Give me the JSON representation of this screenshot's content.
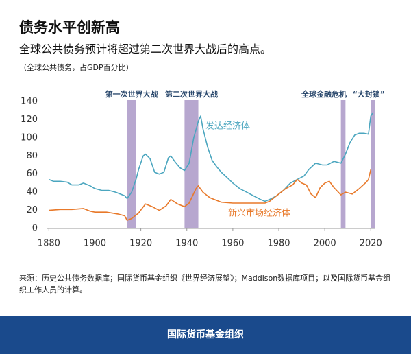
{
  "chart_data": {
    "type": "line",
    "title": "债务水平创新高",
    "subtitle": "全球公共债务预计将超过第二次世界大战后的高点。",
    "ylabel": "（全球公共债务，占GDP百分比）",
    "xlim": [
      1879,
      2022
    ],
    "xticks": [
      1880,
      1900,
      1920,
      1940,
      1960,
      1980,
      2000,
      2020
    ],
    "ylim": [
      0,
      140
    ],
    "yticks": [
      0,
      20,
      40,
      60,
      80,
      100,
      120,
      140
    ],
    "grid": false,
    "shade_color": "#b7a7cf",
    "shaded_periods": [
      {
        "label": "第一次世界大战",
        "start": 1914,
        "end": 1918
      },
      {
        "label": "第二次世界大战",
        "start": 1939,
        "end": 1945
      },
      {
        "label": "全球金融危机",
        "start": 2007,
        "end": 2009
      },
      {
        "label": "“大封锁”",
        "start": 2020,
        "end": 2021.8
      }
    ],
    "series": [
      {
        "name": "发达经济体",
        "color": "#4ba6bf",
        "x": [
          1880,
          1882,
          1885,
          1888,
          1890,
          1893,
          1895,
          1898,
          1900,
          1903,
          1906,
          1909,
          1911,
          1913,
          1914,
          1916,
          1918,
          1919,
          1921,
          1922,
          1924,
          1926,
          1928,
          1930,
          1932,
          1933,
          1935,
          1937,
          1939,
          1941,
          1943,
          1945,
          1946,
          1947,
          1949,
          1951,
          1953,
          1955,
          1958,
          1960,
          1963,
          1966,
          1969,
          1972,
          1974,
          1976,
          1979,
          1982,
          1985,
          1988,
          1991,
          1993,
          1996,
          1999,
          2001,
          2004,
          2007,
          2009,
          2011,
          2013,
          2015,
          2017,
          2019,
          2020,
          2021
        ],
        "values": [
          54,
          52,
          52,
          51,
          48,
          48,
          50,
          47,
          44,
          42,
          42,
          40,
          38,
          36,
          33,
          40,
          55,
          65,
          80,
          82,
          77,
          62,
          60,
          62,
          78,
          80,
          73,
          67,
          64,
          72,
          100,
          118,
          124,
          110,
          90,
          75,
          68,
          62,
          55,
          50,
          44,
          40,
          36,
          32,
          30,
          32,
          36,
          42,
          50,
          54,
          58,
          65,
          72,
          70,
          70,
          74,
          72,
          82,
          95,
          103,
          105,
          105,
          104,
          124,
          128
        ]
      },
      {
        "name": "新兴市场经济体",
        "color": "#e8792a",
        "x": [
          1880,
          1885,
          1890,
          1895,
          1898,
          1900,
          1905,
          1910,
          1913,
          1914,
          1916,
          1919,
          1922,
          1925,
          1928,
          1931,
          1933,
          1936,
          1939,
          1941,
          1944,
          1945,
          1947,
          1950,
          1955,
          1960,
          1965,
          1970,
          1974,
          1976,
          1980,
          1983,
          1986,
          1988,
          1990,
          1992,
          1994,
          1996,
          1998,
          2000,
          2002,
          2004,
          2007,
          2009,
          2012,
          2015,
          2018,
          2019,
          2020
        ],
        "values": [
          20,
          21,
          21,
          22,
          19,
          18,
          18,
          16,
          14,
          9,
          11,
          17,
          27,
          24,
          20,
          25,
          32,
          27,
          24,
          28,
          44,
          47,
          40,
          34,
          29,
          28,
          28,
          28,
          28,
          30,
          38,
          44,
          48,
          54,
          50,
          48,
          38,
          34,
          45,
          50,
          52,
          45,
          37,
          40,
          38,
          44,
          51,
          54,
          65
        ]
      }
    ]
  },
  "source": "来源：历史公共债务数据库；国际货币基金组织《世界经济展望》；Maddison数据库项目；以及国际货币基金组织工作人员的计算。",
  "footer": "国际货币基金组织"
}
